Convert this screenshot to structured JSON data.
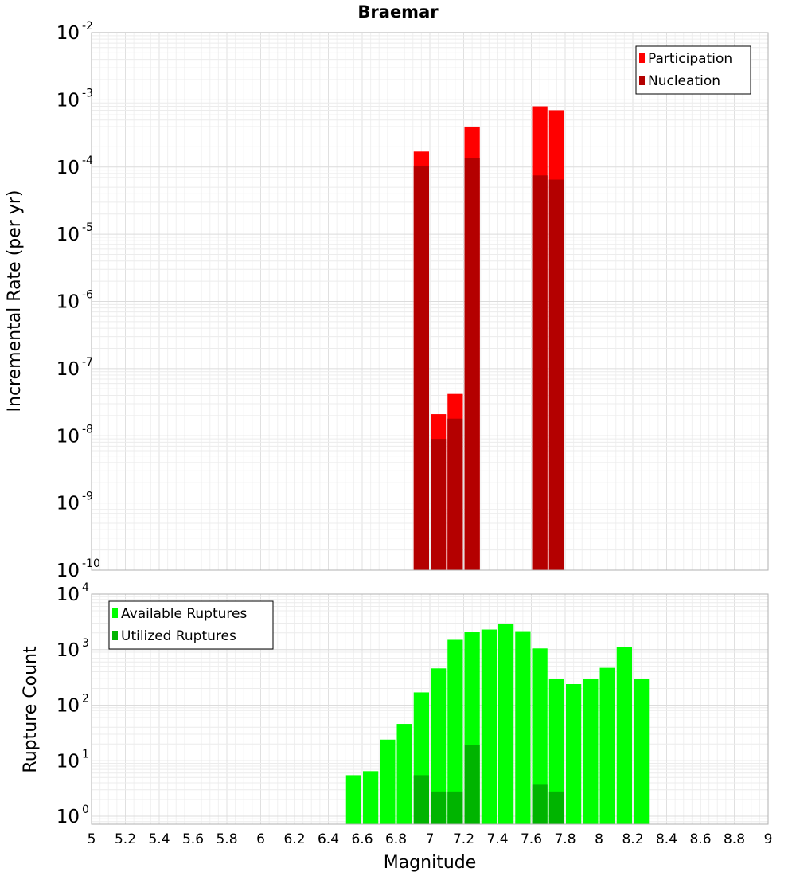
{
  "chart_data": [
    {
      "id": "rate",
      "type": "bar",
      "title": "Braemar",
      "ylabel": "Incremental Rate (per yr)",
      "xlabel": "",
      "yscale": "log",
      "ylim": [
        1e-10,
        0.01
      ],
      "xlim": [
        5,
        9
      ],
      "ytick_exponents": [
        -10,
        -9,
        -8,
        -7,
        -6,
        -5,
        -4,
        -3,
        -2
      ],
      "ytick_base": "10",
      "bin_width": 0.1,
      "grid": true,
      "legend_position": "top-right",
      "series": [
        {
          "name": "Participation",
          "color": "#ff0000",
          "x": [
            6.95,
            7.05,
            7.15,
            7.25,
            7.65,
            7.75
          ],
          "values": [
            0.00017,
            2.1e-08,
            4.2e-08,
            0.0004,
            0.0008,
            0.0007
          ]
        },
        {
          "name": "Nucleation",
          "color": "#b40000",
          "x": [
            6.95,
            7.05,
            7.15,
            7.25,
            7.65,
            7.75
          ],
          "values": [
            0.000105,
            9e-09,
            1.8e-08,
            0.000135,
            7.5e-05,
            6.5e-05
          ]
        }
      ]
    },
    {
      "id": "count",
      "type": "bar",
      "title": "",
      "ylabel": "Rupture Count",
      "xlabel": "Magnitude",
      "yscale": "log",
      "ylim": [
        0.72,
        10000
      ],
      "xlim": [
        5,
        9
      ],
      "ytick_exponents": [
        0,
        1,
        2,
        3,
        4
      ],
      "ytick_base": "10",
      "x_ticks": [
        "5",
        "5.2",
        "5.4",
        "5.6",
        "5.8",
        "6",
        "6.2",
        "6.4",
        "6.6",
        "6.8",
        "7",
        "7.2",
        "7.4",
        "7.6",
        "7.8",
        "8",
        "8.2",
        "8.4",
        "8.6",
        "8.8",
        "9"
      ],
      "bin_width": 0.1,
      "grid": true,
      "legend_position": "top-left",
      "series": [
        {
          "name": "Available Ruptures",
          "color": "#00ff00",
          "x": [
            6.55,
            6.65,
            6.75,
            6.85,
            6.95,
            7.05,
            7.15,
            7.25,
            7.35,
            7.45,
            7.55,
            7.65,
            7.75,
            7.85,
            7.95,
            8.05,
            8.15,
            8.25
          ],
          "values": [
            5.5,
            6.5,
            24,
            46,
            170,
            460,
            1500,
            2050,
            2300,
            2950,
            2150,
            1050,
            300,
            240,
            300,
            470,
            1100,
            300
          ]
        },
        {
          "name": "Utilized Ruptures",
          "color": "#00b400",
          "x": [
            6.95,
            7.05,
            7.15,
            7.25,
            7.65,
            7.75
          ],
          "values": [
            5.5,
            2.8,
            2.8,
            19,
            3.7,
            2.8
          ]
        }
      ]
    }
  ]
}
